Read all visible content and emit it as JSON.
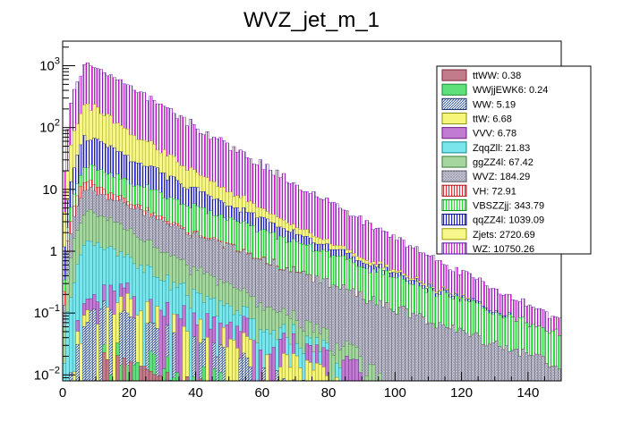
{
  "chart_data": {
    "type": "bar",
    "style": "stacked-histogram-log",
    "title": "WVZ_jet_m_1",
    "xlabel": "",
    "ylabel": "",
    "xlim": [
      0,
      150
    ],
    "ylim": [
      0.008,
      2500
    ],
    "yscale": "log",
    "bin_width": 1,
    "x_ticks": [
      0,
      20,
      40,
      60,
      80,
      100,
      120,
      140
    ],
    "y_ticks": [
      {
        "value": 0.01,
        "base": "10",
        "exp": "−2"
      },
      {
        "value": 0.1,
        "base": "10",
        "exp": "−1"
      },
      {
        "value": 1,
        "base": "1",
        "exp": ""
      },
      {
        "value": 10,
        "base": "10",
        "exp": ""
      },
      {
        "value": 100,
        "base": "10",
        "exp": "2"
      },
      {
        "value": 1000,
        "base": "10",
        "exp": "3"
      }
    ],
    "legend_position": "top-right",
    "series_order_note": "bottom of stack first",
    "series": [
      {
        "name": "ttWW",
        "total": 0.38,
        "label": "ttWW: 0.38",
        "color": "#c27b8a",
        "pattern": "solid",
        "edge": "#7a2a3a",
        "peak_x": 12,
        "peak": 0.02,
        "tau": 30,
        "sparse": true
      },
      {
        "name": "WWjjEWK6",
        "total": 0.24,
        "label": "WWjjEWK6: 0.24",
        "color": "#5fe07a",
        "pattern": "solid",
        "edge": "#1a8a33",
        "peak_x": 20,
        "peak": 0.015,
        "tau": 30,
        "sparse": true
      },
      {
        "name": "WW",
        "total": 5.19,
        "label": "WW: 5.19",
        "color": "#3a5fa0",
        "pattern": "hatch-dense",
        "edge": "#1a2f60",
        "peak_x": 10,
        "peak": 0.12,
        "tau": 22,
        "sparse": true
      },
      {
        "name": "ttW",
        "total": 6.68,
        "label": "ttW: 6.68",
        "color": "#f6f67a",
        "pattern": "solid",
        "edge": "#8a8a10",
        "peak_x": 14,
        "peak": 0.12,
        "tau": 25,
        "sparse": true
      },
      {
        "name": "VVV",
        "total": 6.78,
        "label": "VVV: 6.78",
        "color": "#c27bd2",
        "pattern": "solid",
        "edge": "#6a1a80",
        "peak_x": 14,
        "peak": 0.15,
        "tau": 28,
        "sparse": true
      },
      {
        "name": "ZqqZll",
        "total": 21.83,
        "label": "ZqqZll: 21.83",
        "color": "#7ae6ec",
        "pattern": "solid",
        "edge": "#108a94",
        "peak_x": 8,
        "peak": 1.3,
        "tau": 14,
        "sparse": false
      },
      {
        "name": "ggZZ4l",
        "total": 67.42,
        "label": "ggZZ4l: 67.42",
        "color": "#a6d6a0",
        "pattern": "solid",
        "edge": "#3a7a33",
        "peak_x": 7,
        "peak": 3.5,
        "tau": 14,
        "sparse": false
      },
      {
        "name": "WVZ",
        "total": 184.29,
        "label": "WVZ: 184.29",
        "color": "#a0a0b4",
        "pattern": "crosshatch",
        "edge": "#505064",
        "peak_x": 7,
        "peak": 5.5,
        "tau": 24,
        "sparse": false
      },
      {
        "name": "VH",
        "total": 72.91,
        "label": "VH: 72.91",
        "color": "#e8333a",
        "pattern": "vlines",
        "edge": "#b01018",
        "peak_x": 6,
        "peak": 4.0,
        "tau": 10,
        "sparse": false
      },
      {
        "name": "VBSZZjj",
        "total": 343.79,
        "label": "VBSZZjj: 343.79",
        "color": "#22dd33",
        "pattern": "vlines",
        "edge": "#0a8a14",
        "peak_x": 8,
        "peak": 12,
        "tau": 24,
        "sparse": false
      },
      {
        "name": "qqZZ4l",
        "total": 1039.09,
        "label": "qqZZ4l: 1039.09",
        "color": "#2222cc",
        "pattern": "vlines",
        "edge": "#0a0a8a",
        "peak_x": 7,
        "peak": 50,
        "tau": 14,
        "sparse": false
      },
      {
        "name": "Zjets",
        "total": 2720.69,
        "label": "Zjets: 2720.69",
        "color": "#eaea22",
        "pattern": "solid-light",
        "edge": "#9a9a0a",
        "peak_x": 7,
        "peak": 180,
        "tau": 11,
        "sparse": false
      },
      {
        "name": "WZ",
        "total": 10750.26,
        "label": "WZ: 10750.26",
        "color": "#cc22cc",
        "pattern": "vlines",
        "edge": "#4a0a9a",
        "peak_x": 7,
        "peak": 900,
        "tau": 14,
        "sparse": false
      }
    ],
    "visual_anchors": {
      "stack_peak": 1300,
      "stack_at_150": 0.12
    }
  }
}
